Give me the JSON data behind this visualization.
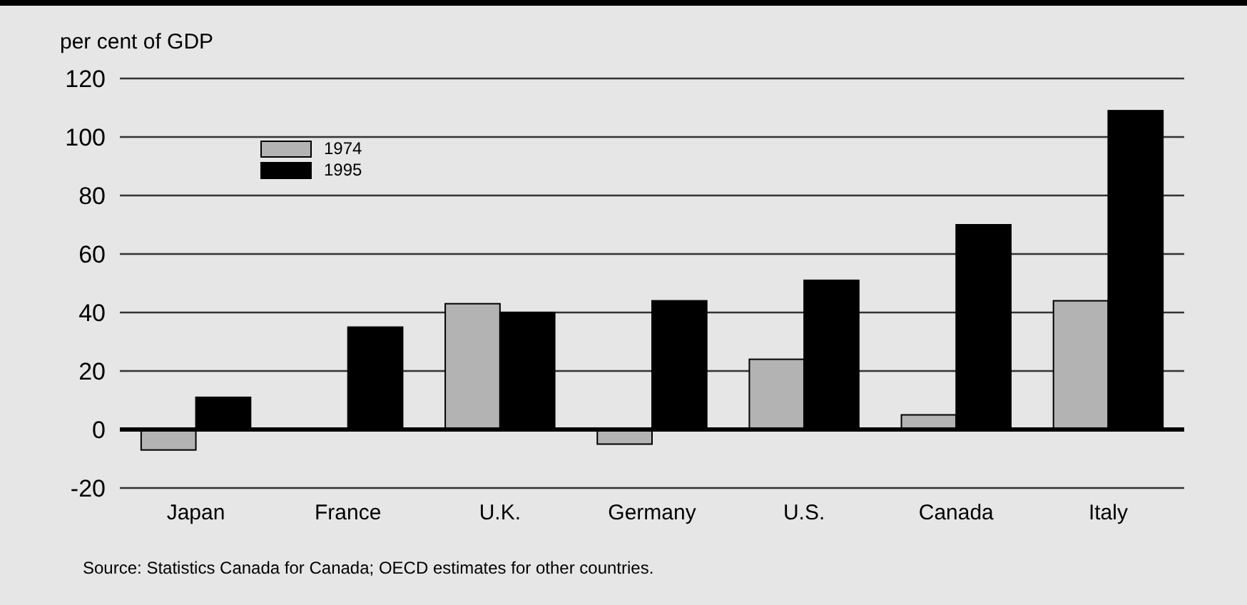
{
  "chart_data": {
    "type": "bar",
    "ylabel": "per cent of GDP",
    "categories": [
      "Japan",
      "France",
      "U.K.",
      "Germany",
      "U.S.",
      "Canada",
      "Italy"
    ],
    "series": [
      {
        "name": "1974",
        "color": "#b3b3b3",
        "values": [
          -7,
          0,
          43,
          -5,
          24,
          5,
          44
        ]
      },
      {
        "name": "1995",
        "color": "#000000",
        "values": [
          11,
          35,
          40,
          44,
          51,
          70,
          109
        ]
      }
    ],
    "ylim": [
      -20,
      120
    ],
    "yticks": [
      -20,
      0,
      20,
      40,
      60,
      80,
      100,
      120
    ],
    "grid": "y",
    "legend": "top left",
    "annotations": [
      "Source: Statistics Canada for Canada; OECD estimates for other countries."
    ]
  }
}
